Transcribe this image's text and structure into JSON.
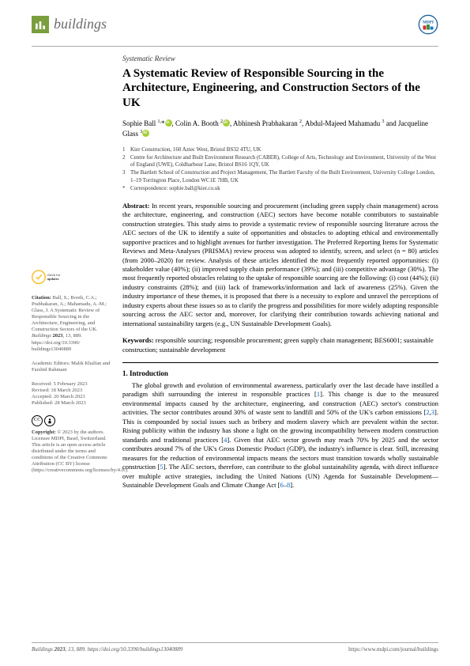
{
  "journal": "buildings",
  "article_type": "Systematic Review",
  "title": "A Systematic Review of Responsible Sourcing in the Architecture, Engineering, and Construction Sectors of the UK",
  "authors_html": "Sophie Ball <sup>1,</sup>*<span class=\"orcid\"></span>, Colin A. Booth <sup>2</sup><span class=\"orcid\"></span>, Abhinesh Prabhakaran <sup>2</sup>, Abdul-Majeed Mahamadu <sup>3</sup> and Jacqueline Glass <sup>3</sup><span class=\"orcid\"></span>",
  "affiliations": [
    {
      "n": "1",
      "text": "Kier Construction, 160 Aztec West, Bristol BS32 4TU, UK"
    },
    {
      "n": "2",
      "text": "Centre for Architecture and Built Environment Research (CABER), College of Arts, Technology and Environment, University of the West of England (UWE), Coldharbour Lane, Bristol BS16 1QY, UK"
    },
    {
      "n": "3",
      "text": "The Bartlett School of Construction and Project Management, The Bartlett Faculty of the Built Environment, University College London, 1–19 Torrington Place, London WC1E 7HB, UK"
    },
    {
      "n": "*",
      "text": "Correspondence: sophie.ball@kier.co.uk"
    }
  ],
  "abstract": "In recent years, responsible sourcing and procurement (including green supply chain management) across the architecture, engineering, and construction (AEC) sectors have become notable contributors to sustainable construction strategies. This study aims to provide a systematic review of responsible sourcing literature across the AEC sectors of the UK to identify a suite of opportunities and obstacles to adopting ethical and environmentally supportive practices and to highlight avenues for further investigation. The Preferred Reporting Items for Systematic Reviews and Meta-Analyses (PRISMA) review process was adopted to identify, screen, and select (n = 80) articles (from 2000–2020) for review. Analysis of these articles identified the most frequently reported opportunities: (i) stakeholder value (40%); (ii) improved supply chain performance (39%); and (iii) competitive advantage (30%). The most frequently reported obstacles relating to the uptake of responsible sourcing are the following: (i) cost (44%); (ii) industry constraints (28%); and (iii) lack of frameworks/information and lack of awareness (25%). Given the industry importance of these themes, it is proposed that there is a necessity to explore and unravel the perceptions of industry experts about these issues so as to clarify the progress and possibilities for more widely adopting responsible sourcing across the AEC sector and, moreover, for clarifying their contribution towards achieving national and international sustainability targets (e.g., UN Sustainable Development Goals).",
  "keywords": "responsible sourcing; responsible procurement; green supply chain management; BES6001; sustainable construction; sustainable development",
  "section1_title": "1. Introduction",
  "intro_text": "The global growth and evolution of environmental awareness, particularly over the last decade have instilled a paradigm shift surrounding the interest in responsible practices [<span class=\"ref\">1</span>]. This change is due to the measured environmental impacts caused by the architecture, engineering, and construction (AEC) sector's construction activities. The sector contributes around 30% of waste sent to landfill and 50% of the UK's carbon emissions [<span class=\"ref\">2</span>,<span class=\"ref\">3</span>]. This is compounded by social issues such as bribery and modern slavery which are prevalent within the sector. Rising publicity within the industry has shone a light on the growing incompatibility between modern construction standards and traditional practices [<span class=\"ref\">4</span>]. Given that AEC sector growth may reach 70% by 2025 and the sector contributes around 7% of the UK's Gross Domestic Product (GDP), the industry's influence is clear. Still, increasing measures for the reduction of environmental impacts means the sectors must transition towards wholly sustainable construction [<span class=\"ref\">5</span>]. The AEC sectors, therefore, can contribute to the global sustainability agenda, with direct influence over multiple active strategies, including the United Nations (UN) Agenda for Sustainable Development—Sustainable Development Goals and Climate Change Act [<span class=\"ref\">6</span>–<span class=\"ref\">8</span>].",
  "citation": "Ball, S.; Booth, C.A.; Prabhakaran, A.; Mahamadu, A.-M.; Glass, J. A Systematic Review of Responsible Sourcing in the Architecture, Engineering, and Construction Sectors of the UK. <i>Buildings</i> <b>2023</b>, <i>13</i>, 889. https://doi.org/10.3390/buildings13040889",
  "editors": "Academic Editors: Malik Khalfan and Farshid Rahmani",
  "received": "Received: 5 February 2023",
  "revised": "Revised: 18 March 2023",
  "accepted": "Accepted: 20 March 2023",
  "published": "Published: 28 March 2023",
  "copyright": "© 2023 by the authors. Licensee MDPI, Basel, Switzerland. This article is an open access article distributed under the terms and conditions of the Creative Commons Attribution (CC BY) license (https://creativecommons.org/licenses/by/4.0/).",
  "footer_left": "Buildings 2023, 13, 889. https://doi.org/10.3390/buildings13040889",
  "footer_right": "https://www.mdpi.com/journal/buildings",
  "check_updates_label": "check for updates"
}
